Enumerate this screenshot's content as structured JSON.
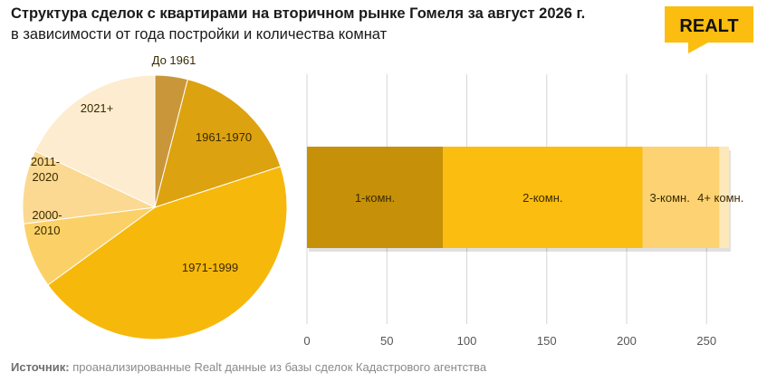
{
  "header": {
    "title": "Структура сделок с квартирами на вторичном рынке Гомеля за август 2026 г.",
    "subtitle": "в зависимости от года постройки и количества комнат",
    "logo_text": "REALT"
  },
  "footer": {
    "source_label": "Источник:",
    "source_text": " проанализированные Realt данные из базы сделок Кадастрового агентства"
  },
  "colors": {
    "pie": [
      "#c9973a",
      "#dda20f",
      "#f6b80b",
      "#fbd167",
      "#fbd992",
      "#fdeccf"
    ],
    "bar": [
      "#c69109",
      "#fbbd0f",
      "#fdd273",
      "#fde8ba"
    ],
    "logo_bg": "#fbbd0f"
  },
  "chart_data": [
    {
      "type": "pie",
      "title": "",
      "labels": [
        "До 1961",
        "1961-1970",
        "1971-1999",
        "2000-2010",
        "2011-2020",
        "2021+"
      ],
      "values": [
        4,
        16,
        45,
        8,
        9,
        18
      ],
      "unit": "% (estimated)"
    },
    {
      "type": "bar",
      "orientation": "horizontal",
      "stacked": true,
      "title": "",
      "categories": [
        ""
      ],
      "series": [
        {
          "name": "1-комн.",
          "values": [
            85
          ]
        },
        {
          "name": "2-комн.",
          "values": [
            125
          ]
        },
        {
          "name": "3-комн.",
          "values": [
            48
          ]
        },
        {
          "name": "4+ комн.",
          "values": [
            6
          ]
        }
      ],
      "xlim": [
        0,
        275
      ],
      "xticks": [
        0,
        50,
        100,
        150,
        200,
        250
      ],
      "grid": true
    }
  ]
}
